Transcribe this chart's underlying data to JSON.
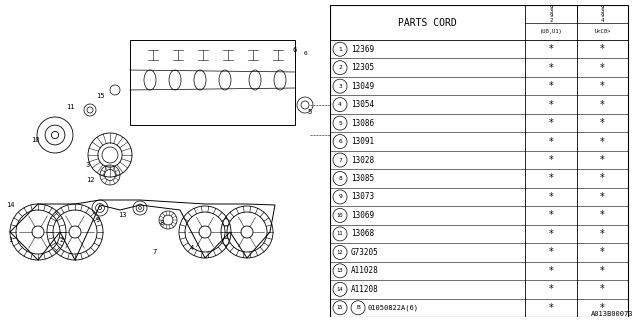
{
  "catalog_number": "A013B00073",
  "parts": [
    {
      "num": 1,
      "code": "12369"
    },
    {
      "num": 2,
      "code": "12305"
    },
    {
      "num": 3,
      "code": "13049"
    },
    {
      "num": 4,
      "code": "13054"
    },
    {
      "num": 5,
      "code": "13086"
    },
    {
      "num": 6,
      "code": "13091"
    },
    {
      "num": 7,
      "code": "13028"
    },
    {
      "num": 8,
      "code": "13085"
    },
    {
      "num": 9,
      "code": "13073"
    },
    {
      "num": 10,
      "code": "13069"
    },
    {
      "num": 11,
      "code": "13068"
    },
    {
      "num": 12,
      "code": "G73205"
    },
    {
      "num": 13,
      "code": "A11028"
    },
    {
      "num": 14,
      "code": "A11208"
    },
    {
      "num": 15,
      "code": "01050822A(6)"
    }
  ],
  "col_header_1": "PARTS CORD",
  "col_header_2b": "(U0,U1)",
  "col_header_3b": "U<C0>",
  "bg_color": "#ffffff",
  "line_color": "#000000"
}
